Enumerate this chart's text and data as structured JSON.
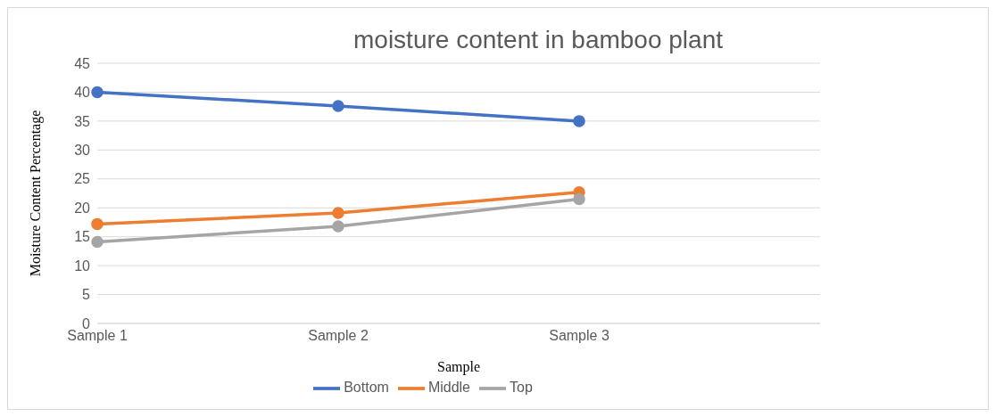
{
  "chart_data": {
    "type": "line",
    "title": "moisture content in bamboo plant",
    "xlabel": "Sample",
    "ylabel": "Moisture Content Percentage",
    "categories": [
      "Sample 1",
      "Sample 2",
      "Sample 3",
      null
    ],
    "series": [
      {
        "name": "Bottom",
        "color": "#4472c4",
        "values": [
          40,
          37.6,
          35,
          null
        ]
      },
      {
        "name": "Middle",
        "color": "#ed7d31",
        "values": [
          17.2,
          19.1,
          22.7,
          null
        ]
      },
      {
        "name": "Top",
        "color": "#a5a5a5",
        "values": [
          14.1,
          16.8,
          21.5,
          null
        ]
      }
    ],
    "ylim": [
      0,
      45
    ],
    "yticks": [
      0,
      5,
      10,
      15,
      20,
      25,
      30,
      35,
      40,
      45
    ],
    "grid": "y",
    "legend": "bottom",
    "marker": "circle",
    "line_style": "solid"
  }
}
